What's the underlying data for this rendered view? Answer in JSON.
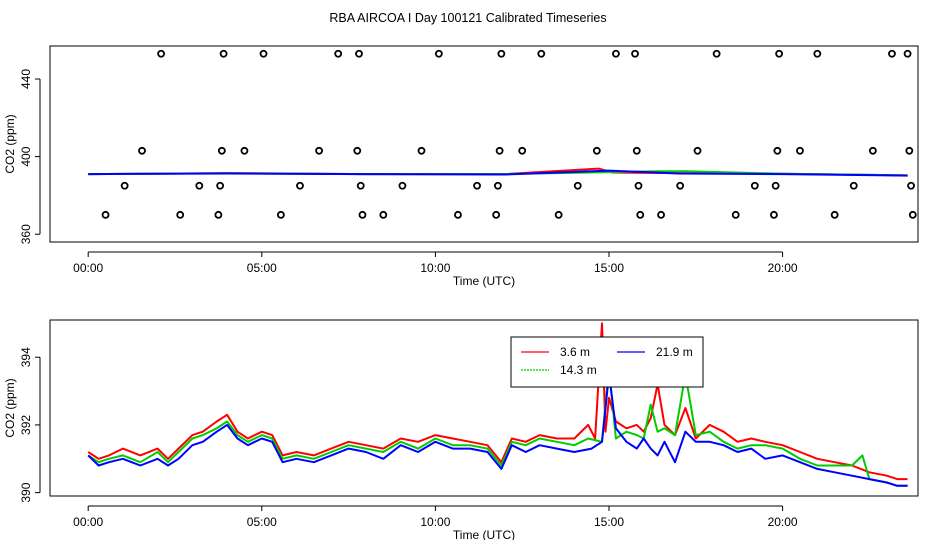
{
  "title": "RBA AIRCOA I  Day 100121  Calibrated Timeseries",
  "colors": {
    "red": "#ff0000",
    "green": "#00cc00",
    "blue": "#0000ff",
    "black": "#000000"
  },
  "chart_data": [
    {
      "type": "line",
      "title": "RBA AIRCOA I  Day 100121  Calibrated Timeseries",
      "xlabel": "Time (UTC)",
      "ylabel": "CO2 (ppm)",
      "xlim": [
        -1.1,
        23.9
      ],
      "ylim": [
        356,
        457
      ],
      "xticks": [
        0,
        5,
        10,
        15,
        20
      ],
      "xtick_labels": [
        "00:00",
        "05:00",
        "10:00",
        "15:00",
        "20:00"
      ],
      "yticks": [
        360,
        400,
        440
      ],
      "ytick_labels": [
        "360",
        "400",
        "440"
      ],
      "marker_series": {
        "name": "calibration points",
        "marker": "open-circle",
        "points": [
          [
            0.5,
            370
          ],
          [
            1.05,
            385
          ],
          [
            1.55,
            403
          ],
          [
            2.1,
            453
          ],
          [
            2.65,
            370
          ],
          [
            3.2,
            385
          ],
          [
            3.75,
            370
          ],
          [
            3.8,
            385
          ],
          [
            3.85,
            403
          ],
          [
            3.9,
            453
          ],
          [
            4.5,
            403
          ],
          [
            5.05,
            453
          ],
          [
            5.55,
            370
          ],
          [
            6.1,
            385
          ],
          [
            6.65,
            403
          ],
          [
            7.2,
            453
          ],
          [
            7.75,
            403
          ],
          [
            7.8,
            453
          ],
          [
            7.85,
            385
          ],
          [
            7.9,
            370
          ],
          [
            8.5,
            370
          ],
          [
            9.05,
            385
          ],
          [
            9.6,
            403
          ],
          [
            10.1,
            453
          ],
          [
            10.65,
            370
          ],
          [
            11.2,
            385
          ],
          [
            11.75,
            370
          ],
          [
            11.8,
            385
          ],
          [
            11.85,
            403
          ],
          [
            11.9,
            453
          ],
          [
            12.5,
            403
          ],
          [
            13.05,
            453
          ],
          [
            13.55,
            370
          ],
          [
            14.1,
            385
          ],
          [
            14.65,
            403
          ],
          [
            15.2,
            453
          ],
          [
            15.75,
            453
          ],
          [
            15.8,
            403
          ],
          [
            15.85,
            385
          ],
          [
            15.9,
            370
          ],
          [
            16.5,
            370
          ],
          [
            17.05,
            385
          ],
          [
            17.55,
            403
          ],
          [
            18.1,
            453
          ],
          [
            18.65,
            370
          ],
          [
            19.2,
            385
          ],
          [
            19.75,
            370
          ],
          [
            19.8,
            385
          ],
          [
            19.85,
            403
          ],
          [
            19.9,
            453
          ],
          [
            20.5,
            403
          ],
          [
            21.0,
            453
          ],
          [
            21.5,
            370
          ],
          [
            22.05,
            385
          ],
          [
            22.6,
            403
          ],
          [
            23.15,
            453
          ],
          [
            23.6,
            453
          ],
          [
            23.65,
            403
          ],
          [
            23.7,
            385
          ],
          [
            23.75,
            370
          ]
        ]
      },
      "series": [
        {
          "name": "3.6 m",
          "color": "#ff0000",
          "x": [
            0,
            4,
            8,
            12,
            14.7,
            15.1,
            17,
            20,
            23.6
          ],
          "y": [
            391,
            391.5,
            391,
            391,
            393.8,
            391.8,
            391.5,
            391.2,
            390.3
          ]
        },
        {
          "name": "14.3 m",
          "color": "#00cc00",
          "x": [
            0,
            4,
            8,
            12,
            15,
            16.5,
            17.2,
            20,
            23.6
          ],
          "y": [
            391,
            391.4,
            391,
            391,
            392,
            392.5,
            392.5,
            391.2,
            390.3
          ]
        },
        {
          "name": "21.9 m",
          "color": "#0000ff",
          "x": [
            0,
            4,
            8,
            12,
            15,
            17,
            20,
            23.6
          ],
          "y": [
            391,
            391.3,
            391,
            390.8,
            392.8,
            391.3,
            391,
            390.2
          ]
        }
      ]
    },
    {
      "type": "line",
      "title": "",
      "xlabel": "Time (UTC)",
      "ylabel": "CO2 (ppm)",
      "xlim": [
        -1.1,
        23.9
      ],
      "ylim": [
        389.9,
        395.1
      ],
      "xticks": [
        0,
        5,
        10,
        15,
        20
      ],
      "xtick_labels": [
        "00:00",
        "05:00",
        "10:00",
        "15:00",
        "20:00"
      ],
      "yticks": [
        390,
        392,
        394
      ],
      "ytick_labels": [
        "390",
        "392",
        "394"
      ],
      "legend": {
        "placement": "top-center",
        "entries": [
          "3.6 m",
          "21.9 m",
          "14.3 m"
        ]
      },
      "series": [
        {
          "name": "3.6 m",
          "color": "#ff0000",
          "x": [
            0,
            0.3,
            0.6,
            1,
            1.5,
            2,
            2.3,
            2.6,
            3,
            3.3,
            3.7,
            4,
            4.3,
            4.6,
            5,
            5.3,
            5.6,
            6,
            6.5,
            7,
            7.5,
            8,
            8.5,
            9,
            9.5,
            10,
            10.5,
            11,
            11.5,
            11.9,
            12.2,
            12.6,
            13,
            13.5,
            14,
            14.4,
            14.6,
            14.8,
            14.9,
            15.0,
            15.2,
            15.5,
            15.8,
            16.0,
            16.2,
            16.4,
            16.6,
            16.9,
            17.2,
            17.5,
            17.9,
            18.3,
            18.7,
            19.1,
            19.5,
            20,
            20.5,
            21,
            21.5,
            22,
            22.5,
            23,
            23.3,
            23.6
          ],
          "y": [
            391.2,
            391.0,
            391.1,
            391.3,
            391.1,
            391.3,
            391.0,
            391.3,
            391.7,
            391.8,
            392.1,
            392.3,
            391.8,
            391.6,
            391.8,
            391.7,
            391.1,
            391.2,
            391.1,
            391.3,
            391.5,
            391.4,
            391.3,
            391.6,
            391.5,
            391.7,
            391.6,
            391.5,
            391.4,
            390.9,
            391.6,
            391.5,
            391.7,
            391.6,
            391.6,
            392.0,
            391.6,
            395.0,
            391.8,
            392.8,
            392.1,
            391.9,
            392.0,
            391.8,
            392.2,
            393.2,
            392.0,
            391.7,
            392.5,
            391.6,
            392.0,
            391.8,
            391.5,
            391.6,
            391.5,
            391.4,
            391.2,
            391.0,
            390.9,
            390.8,
            390.6,
            390.5,
            390.4,
            390.4
          ]
        },
        {
          "name": "14.3 m",
          "color": "#00cc00",
          "x": [
            0,
            0.3,
            0.6,
            1,
            1.5,
            2,
            2.3,
            2.6,
            3,
            3.3,
            3.7,
            4,
            4.3,
            4.6,
            5,
            5.3,
            5.6,
            6,
            6.5,
            7,
            7.5,
            8,
            8.5,
            9,
            9.5,
            10,
            10.5,
            11,
            11.5,
            11.9,
            12.2,
            12.6,
            13,
            13.5,
            14,
            14.4,
            14.8,
            15.0,
            15.2,
            15.5,
            15.8,
            16.0,
            16.2,
            16.4,
            16.6,
            16.9,
            17.2,
            17.5,
            17.9,
            18.3,
            18.7,
            19.1,
            19.5,
            20,
            20.5,
            21,
            21.5,
            22,
            22.3,
            22.5,
            23,
            23.3,
            23.6
          ],
          "y": [
            391.1,
            390.9,
            391.0,
            391.1,
            390.9,
            391.2,
            390.9,
            391.2,
            391.6,
            391.7,
            391.9,
            392.1,
            391.7,
            391.5,
            391.7,
            391.6,
            391.0,
            391.1,
            391.0,
            391.2,
            391.4,
            391.3,
            391.2,
            391.5,
            391.3,
            391.6,
            391.4,
            391.4,
            391.3,
            390.8,
            391.5,
            391.4,
            391.6,
            391.5,
            391.4,
            391.6,
            391.5,
            393.7,
            391.6,
            391.8,
            391.7,
            391.6,
            392.6,
            391.8,
            391.9,
            391.7,
            393.5,
            391.7,
            391.8,
            391.5,
            391.3,
            391.4,
            391.4,
            391.3,
            391.0,
            390.8,
            390.8,
            390.8,
            391.1,
            390.4,
            390.3,
            390.2,
            390.2
          ]
        },
        {
          "name": "21.9 m",
          "color": "#0000ff",
          "x": [
            0,
            0.3,
            0.6,
            1,
            1.5,
            2,
            2.3,
            2.6,
            3,
            3.3,
            3.7,
            4,
            4.3,
            4.6,
            5,
            5.3,
            5.6,
            6,
            6.5,
            7,
            7.5,
            8,
            8.5,
            9,
            9.5,
            10,
            10.5,
            11,
            11.5,
            11.9,
            12.2,
            12.6,
            13,
            13.5,
            14,
            14.5,
            14.8,
            15.0,
            15.2,
            15.5,
            15.8,
            16.0,
            16.2,
            16.4,
            16.6,
            16.9,
            17.2,
            17.5,
            17.9,
            18.3,
            18.7,
            19.1,
            19.5,
            20,
            20.5,
            21,
            21.5,
            22,
            22.5,
            23,
            23.3,
            23.6
          ],
          "y": [
            391.1,
            390.8,
            390.9,
            391.0,
            390.8,
            391.0,
            390.8,
            391.0,
            391.4,
            391.5,
            391.8,
            392.0,
            391.6,
            391.4,
            391.6,
            391.5,
            390.9,
            391.0,
            390.9,
            391.1,
            391.3,
            391.2,
            391.0,
            391.4,
            391.2,
            391.5,
            391.3,
            391.3,
            391.2,
            390.7,
            391.4,
            391.2,
            391.4,
            391.3,
            391.2,
            391.3,
            391.5,
            393.5,
            391.9,
            391.5,
            391.3,
            391.6,
            391.3,
            391.1,
            391.5,
            390.9,
            391.8,
            391.5,
            391.5,
            391.4,
            391.2,
            391.3,
            391.0,
            391.1,
            390.9,
            390.7,
            390.6,
            390.5,
            390.4,
            390.3,
            390.2,
            390.2
          ]
        }
      ]
    }
  ]
}
